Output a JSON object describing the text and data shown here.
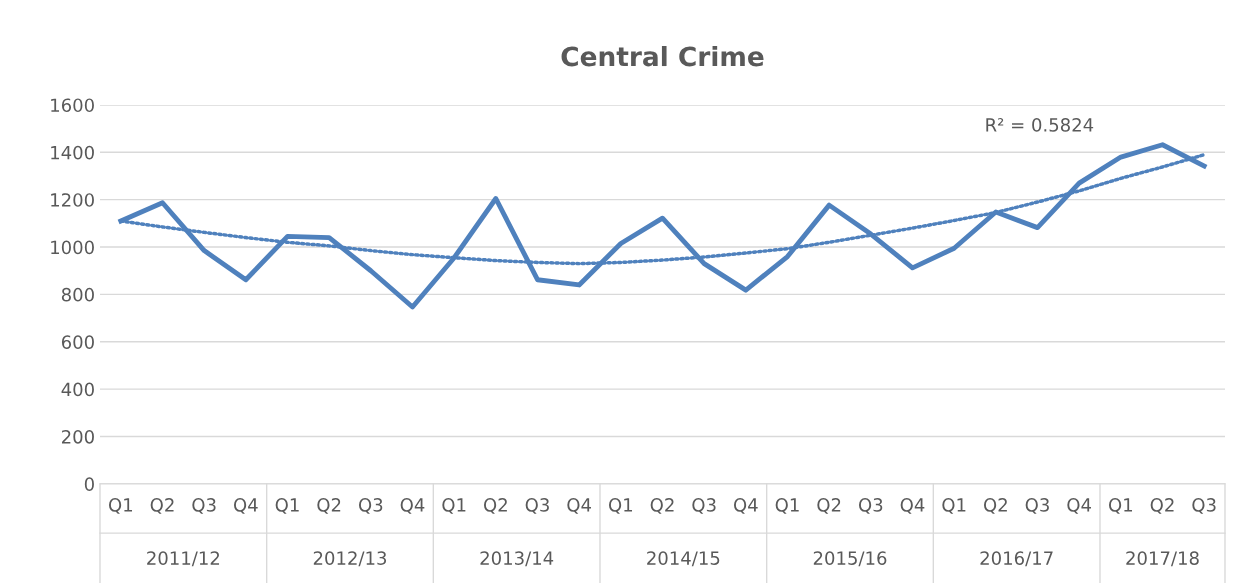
{
  "chart_data": {
    "type": "line",
    "title": "Central Crime",
    "categories": [
      "Q1",
      "Q2",
      "Q3",
      "Q4",
      "Q1",
      "Q2",
      "Q3",
      "Q4",
      "Q1",
      "Q2",
      "Q3",
      "Q4",
      "Q1",
      "Q2",
      "Q3",
      "Q4",
      "Q1",
      "Q2",
      "Q3",
      "Q4",
      "Q1",
      "Q2",
      "Q3",
      "Q4",
      "Q1",
      "Q2",
      "Q3"
    ],
    "series": [
      {
        "color": "#4f81bd",
        "line_style": "solid",
        "values": [
          1110,
          1187,
          985,
          862,
          1045,
          1040,
          900,
          747,
          955,
          1205,
          862,
          840,
          1015,
          1122,
          930,
          818,
          960,
          1177,
          1055,
          912,
          995,
          1148,
          1082,
          1270,
          1380,
          1432,
          1342
        ]
      },
      {
        "color": "#4f81bd",
        "line_style": "dotted",
        "values": [
          1110,
          1085,
          1062,
          1040,
          1020,
          1005,
          985,
          968,
          955,
          943,
          935,
          930,
          935,
          945,
          958,
          975,
          993,
          1020,
          1050,
          1080,
          1112,
          1146,
          1190,
          1237,
          1290,
          1338,
          1390
        ]
      }
    ],
    "annotations": [
      "R² = 0.5824",
      "2011/12",
      "2012/13",
      "2013/14",
      "2014/15",
      "2015/16",
      "2016/17",
      "2017/18"
    ],
    "ylim": [
      0,
      1600
    ],
    "yticks": [
      0,
      200,
      400,
      600,
      800,
      1000,
      1200,
      1400,
      1600
    ],
    "grid": "y",
    "marker": "none",
    "legend": false
  }
}
